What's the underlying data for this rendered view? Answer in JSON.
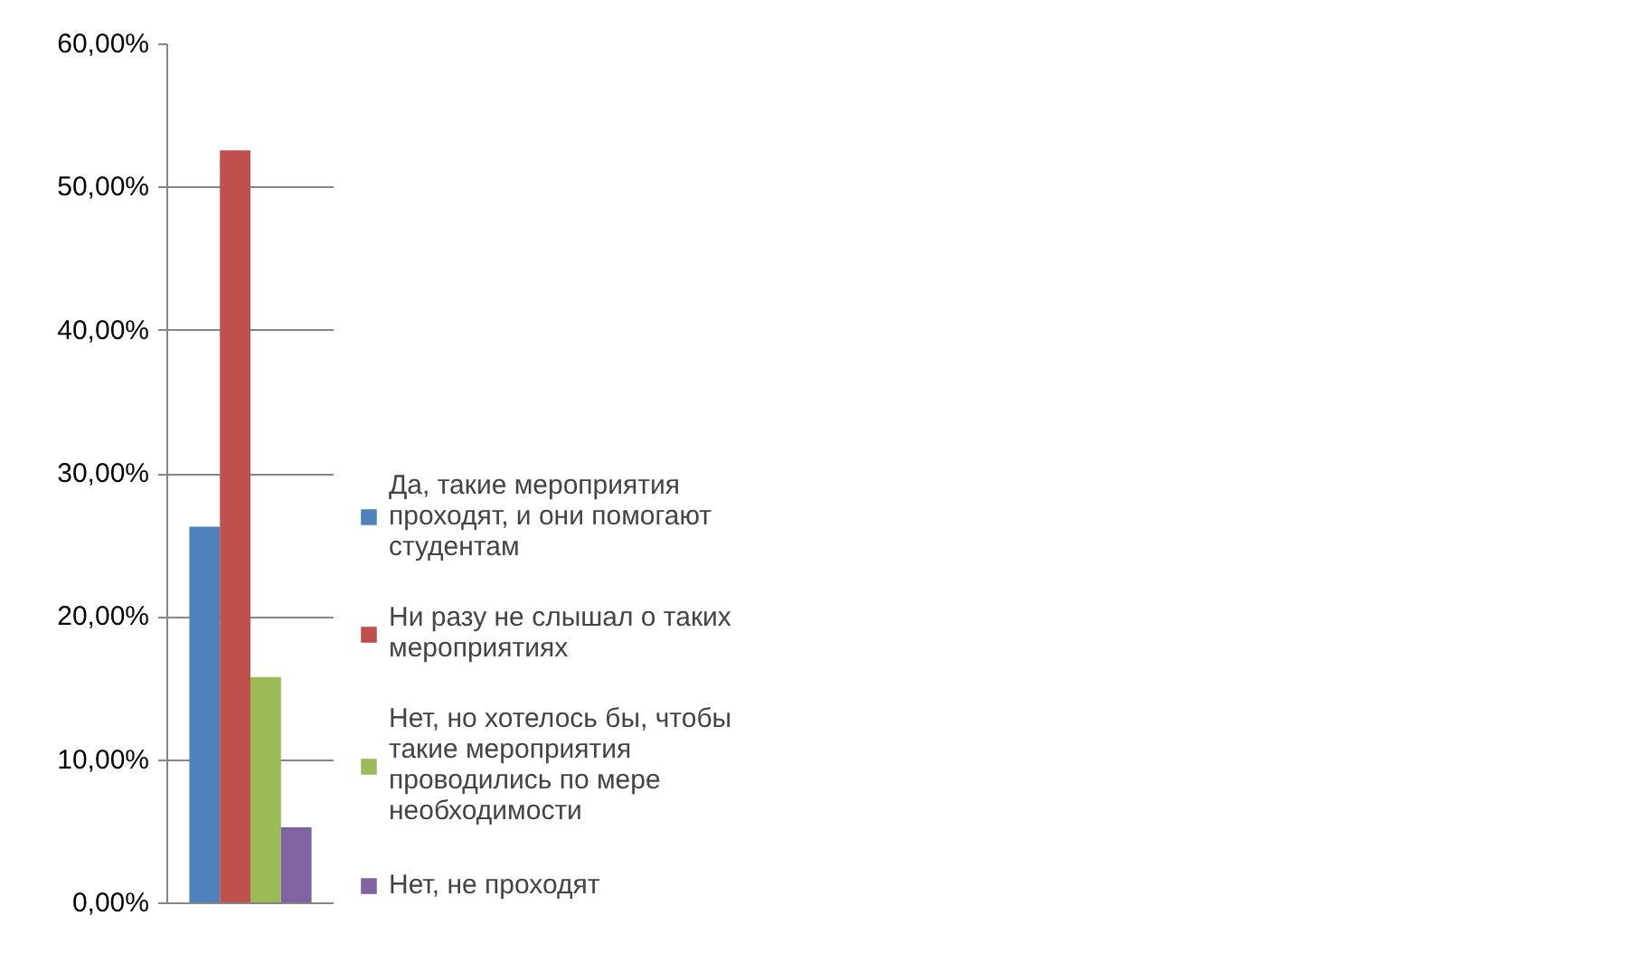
{
  "chart_data": {
    "type": "bar",
    "categories": [
      null
    ],
    "series": [
      {
        "name": "Да, такие мероприятия проходят, и они помогают студентам",
        "color": "#4f81bd",
        "values": [
          26.3
        ]
      },
      {
        "name": "Ни разу не слышал о таких мероприятиях",
        "color": "#c0504d",
        "values": [
          52.6
        ]
      },
      {
        "name": "Нет, но хотелось бы, чтобы такие мероприятия проводились по мере необходимости",
        "color": "#9bbb59",
        "values": [
          15.8
        ]
      },
      {
        "name": "Нет, не проходят",
        "color": "#8064a2",
        "values": [
          5.3
        ]
      }
    ],
    "ylim": [
      0,
      60
    ],
    "yticks": [
      {
        "value": 0,
        "label": "0,00%"
      },
      {
        "value": 10,
        "label": "10,00%"
      },
      {
        "value": 20,
        "label": "20,00%"
      },
      {
        "value": 30,
        "label": "30,00%"
      },
      {
        "value": 40,
        "label": "40,00%"
      },
      {
        "value": 50,
        "label": "50,00%"
      },
      {
        "value": 60,
        "label": "60,00%"
      }
    ],
    "grid": "y",
    "legend": "right"
  }
}
